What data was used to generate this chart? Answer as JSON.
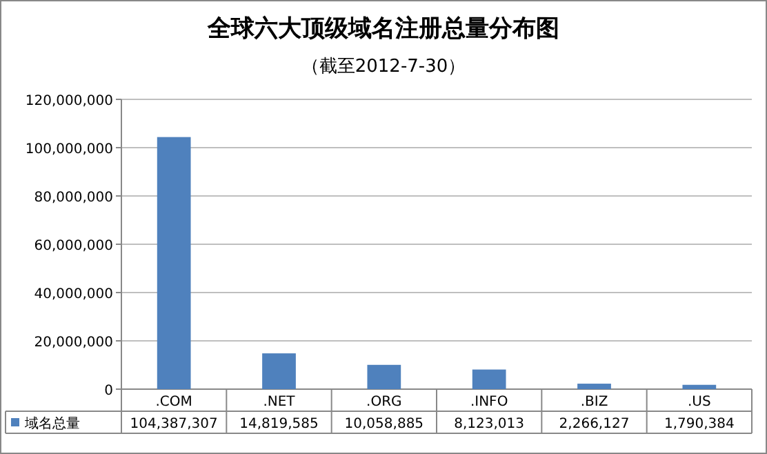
{
  "chart_data": {
    "type": "bar",
    "title": "全球六大顶级域名注册总量分布图",
    "subtitle": "（截至2012-7-30）",
    "categories": [
      ".COM",
      ".NET",
      ".ORG",
      ".INFO",
      ".BIZ",
      ".US"
    ],
    "series": [
      {
        "name": "域名总量",
        "color": "#4f81bd",
        "values": [
          104387307,
          14819585,
          10058885,
          8123013,
          2266127,
          1790384
        ],
        "value_labels": [
          "104,387,307",
          "14,819,585",
          "10,058,885",
          "8,123,013",
          "2,266,127",
          "1,790,384"
        ]
      }
    ],
    "ylim": [
      0,
      120000000
    ],
    "yticks": [
      0,
      {
        "value": 20000000,
        "label": "20,000,000"
      },
      {
        "value": 40000000,
        "label": "40,000,000"
      },
      {
        "value": 60000000,
        "label": "60,000,000"
      },
      {
        "value": 80000000,
        "label": "80,000,000"
      },
      {
        "value": 100000000,
        "label": "100,000,000"
      },
      {
        "value": 120000000,
        "label": "120,000,000"
      }
    ],
    "grid": "y",
    "legend": "bottom"
  }
}
